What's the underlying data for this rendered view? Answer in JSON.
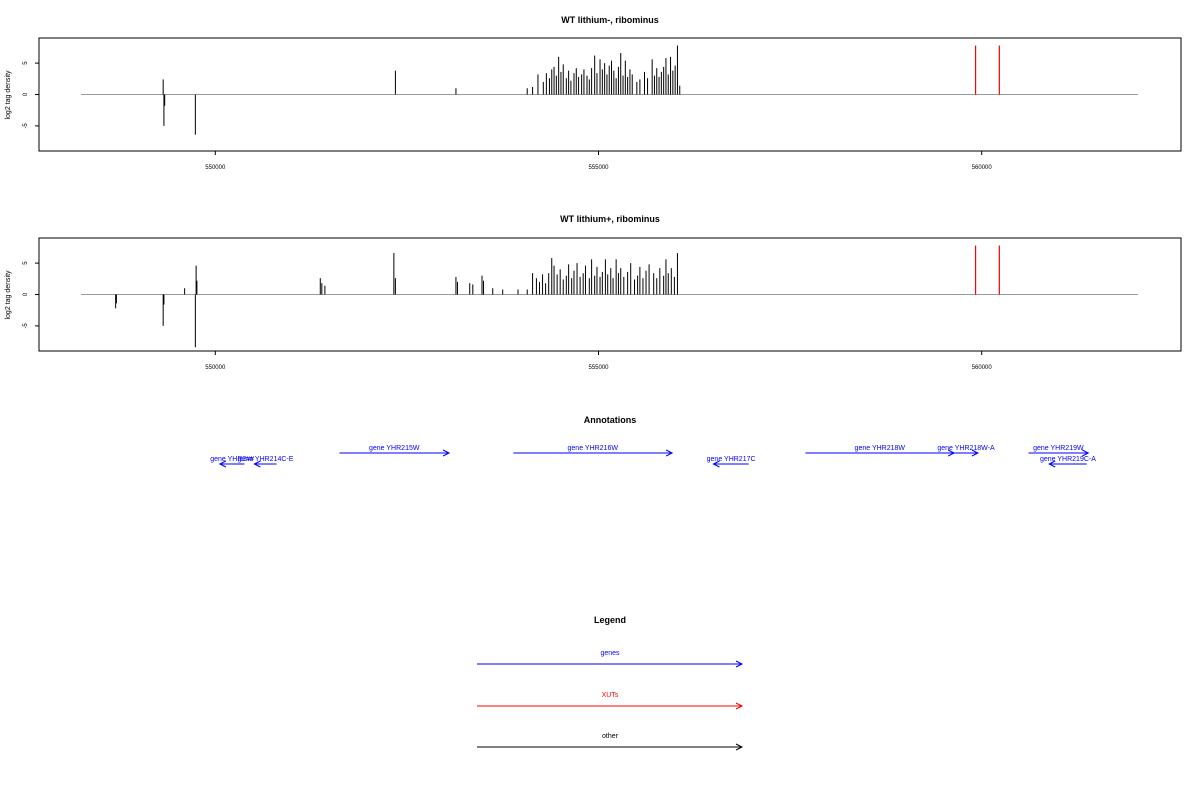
{
  "chart_data": [
    {
      "type": "bar",
      "title": "WT lithium-, ribominus",
      "xlabel": "",
      "ylabel": "log2 tag density",
      "xlim": [
        547700,
        562600
      ],
      "ylim": [
        -9,
        9
      ],
      "x_ticks": [
        550000,
        555000,
        560000
      ],
      "x_tick_labels": [
        "550000",
        "555000",
        "560000"
      ],
      "y_ticks": [
        -5,
        0,
        5
      ],
      "y_tick_labels": [
        "-5",
        "0",
        "5"
      ],
      "baseline": 0,
      "series": [
        {
          "color": "#000000",
          "points": [
            [
              549320,
              2.4
            ],
            [
              549330,
              -5.0
            ],
            [
              549340,
              -1.8
            ],
            [
              549740,
              -6.4
            ],
            [
              552350,
              3.8
            ],
            [
              553140,
              1.0
            ],
            [
              554070,
              1.0
            ],
            [
              554140,
              1.2
            ],
            [
              554210,
              3.2
            ],
            [
              554280,
              2.0
            ],
            [
              554320,
              3.4
            ],
            [
              554360,
              2.6
            ],
            [
              554390,
              4.0
            ],
            [
              554420,
              4.4
            ],
            [
              554450,
              3.0
            ],
            [
              554480,
              6.0
            ],
            [
              554510,
              3.6
            ],
            [
              554540,
              4.8
            ],
            [
              554580,
              2.6
            ],
            [
              554610,
              3.8
            ],
            [
              554640,
              2.2
            ],
            [
              554680,
              3.4
            ],
            [
              554710,
              4.2
            ],
            [
              554740,
              2.8
            ],
            [
              554780,
              3.2
            ],
            [
              554810,
              4.0
            ],
            [
              554850,
              3.0
            ],
            [
              554880,
              2.4
            ],
            [
              554910,
              4.2
            ],
            [
              554950,
              6.2
            ],
            [
              554980,
              3.4
            ],
            [
              555020,
              5.6
            ],
            [
              555050,
              4.0
            ],
            [
              555080,
              5.0
            ],
            [
              555110,
              3.2
            ],
            [
              555140,
              4.6
            ],
            [
              555170,
              5.4
            ],
            [
              555200,
              3.8
            ],
            [
              555230,
              2.6
            ],
            [
              555260,
              4.4
            ],
            [
              555290,
              6.6
            ],
            [
              555320,
              3.0
            ],
            [
              555350,
              5.4
            ],
            [
              555380,
              2.8
            ],
            [
              555410,
              4.0
            ],
            [
              555440,
              3.2
            ],
            [
              555500,
              2.0
            ],
            [
              555540,
              2.4
            ],
            [
              555600,
              3.6
            ],
            [
              555640,
              2.6
            ],
            [
              555700,
              5.6
            ],
            [
              555730,
              3.0
            ],
            [
              555760,
              4.2
            ],
            [
              555790,
              2.8
            ],
            [
              555820,
              3.6
            ],
            [
              555850,
              4.4
            ],
            [
              555880,
              5.8
            ],
            [
              555910,
              3.2
            ],
            [
              555940,
              6.0
            ],
            [
              555970,
              3.8
            ],
            [
              556000,
              4.6
            ],
            [
              556030,
              7.8
            ],
            [
              556060,
              1.4
            ]
          ]
        },
        {
          "color": "#ff0000",
          "points": [
            [
              559920,
              7.8
            ],
            [
              560230,
              7.8
            ]
          ]
        }
      ]
    },
    {
      "type": "bar",
      "title": "WT lithium+, ribominus",
      "xlabel": "",
      "ylabel": "log2 tag density",
      "xlim": [
        547700,
        562600
      ],
      "ylim": [
        -9,
        9
      ],
      "x_ticks": [
        550000,
        555000,
        560000
      ],
      "x_tick_labels": [
        "550000",
        "555000",
        "560000"
      ],
      "y_ticks": [
        -5,
        0,
        5
      ],
      "y_tick_labels": [
        "-5",
        "0",
        "5"
      ],
      "baseline": 0,
      "series": [
        {
          "color": "#000000",
          "points": [
            [
              548700,
              -2.2
            ],
            [
              548710,
              -1.4
            ],
            [
              549320,
              -5.0
            ],
            [
              549330,
              -1.6
            ],
            [
              549600,
              1.0
            ],
            [
              549740,
              -8.4
            ],
            [
              549750,
              4.6
            ],
            [
              549760,
              2.2
            ],
            [
              551370,
              2.6
            ],
            [
              551390,
              1.8
            ],
            [
              551430,
              1.4
            ],
            [
              552330,
              6.6
            ],
            [
              552350,
              2.6
            ],
            [
              553140,
              2.8
            ],
            [
              553160,
              2.0
            ],
            [
              553320,
              1.8
            ],
            [
              553360,
              1.6
            ],
            [
              553480,
              3.0
            ],
            [
              553500,
              2.2
            ],
            [
              553620,
              1.0
            ],
            [
              553750,
              0.8
            ],
            [
              553950,
              0.8
            ],
            [
              554070,
              0.8
            ],
            [
              554140,
              3.4
            ],
            [
              554190,
              2.6
            ],
            [
              554230,
              2.0
            ],
            [
              554270,
              3.2
            ],
            [
              554310,
              1.8
            ],
            [
              554350,
              3.4
            ],
            [
              554390,
              5.8
            ],
            [
              554420,
              4.6
            ],
            [
              554460,
              3.2
            ],
            [
              554500,
              4.0
            ],
            [
              554540,
              2.4
            ],
            [
              554580,
              3.0
            ],
            [
              554610,
              4.8
            ],
            [
              554650,
              2.6
            ],
            [
              554680,
              3.8
            ],
            [
              554720,
              5.0
            ],
            [
              554760,
              2.8
            ],
            [
              554800,
              3.4
            ],
            [
              554830,
              4.6
            ],
            [
              554880,
              2.6
            ],
            [
              554910,
              5.6
            ],
            [
              554950,
              3.0
            ],
            [
              554980,
              4.4
            ],
            [
              555020,
              2.8
            ],
            [
              555050,
              3.6
            ],
            [
              555090,
              5.6
            ],
            [
              555120,
              3.2
            ],
            [
              555160,
              4.2
            ],
            [
              555190,
              2.6
            ],
            [
              555230,
              5.6
            ],
            [
              555260,
              3.4
            ],
            [
              555290,
              4.2
            ],
            [
              555330,
              2.8
            ],
            [
              555380,
              3.6
            ],
            [
              555420,
              5.0
            ],
            [
              555470,
              2.4
            ],
            [
              555510,
              3.0
            ],
            [
              555540,
              4.4
            ],
            [
              555580,
              2.6
            ],
            [
              555620,
              3.8
            ],
            [
              555660,
              4.8
            ],
            [
              555720,
              3.4
            ],
            [
              555760,
              2.6
            ],
            [
              555800,
              4.2
            ],
            [
              555850,
              3.0
            ],
            [
              555880,
              5.6
            ],
            [
              555910,
              3.4
            ],
            [
              555950,
              4.2
            ],
            [
              555990,
              2.8
            ],
            [
              556030,
              6.6
            ]
          ]
        },
        {
          "color": "#ff0000",
          "points": [
            [
              559920,
              7.8
            ],
            [
              560230,
              7.8
            ]
          ]
        }
      ]
    }
  ],
  "annotations": {
    "title": "Annotations",
    "genes": [
      {
        "label": "gene YHR2##",
        "strand": "-",
        "start": 550060,
        "end": 550380,
        "row": 1
      },
      {
        "label": "gene YHR214C-E",
        "strand": "-",
        "start": 550510,
        "end": 550800,
        "row": 1
      },
      {
        "label": "gene YHR215W",
        "strand": "+",
        "start": 551620,
        "end": 553050,
        "row": 0
      },
      {
        "label": "gene YHR216W",
        "strand": "+",
        "start": 553890,
        "end": 555960,
        "row": 0
      },
      {
        "label": "gene YHR217C",
        "strand": "-",
        "start": 556500,
        "end": 556960,
        "row": 1
      },
      {
        "label": "gene YHR218W",
        "strand": "+",
        "start": 557700,
        "end": 559640,
        "row": 0
      },
      {
        "label": "gene YHR218W-A",
        "strand": "+",
        "start": 559640,
        "end": 559950,
        "row": 0
      },
      {
        "label": "gene YHR219W",
        "strand": "+",
        "start": 560610,
        "end": 561390,
        "row": 0
      },
      {
        "label": "gene YHR219C-A",
        "strand": "-",
        "start": 560880,
        "end": 561370,
        "row": 1
      }
    ]
  },
  "legend": {
    "title": "Legend",
    "items": [
      {
        "label": "genes",
        "color": "#0000ff"
      },
      {
        "label": "XUTs",
        "color": "#ff0000"
      },
      {
        "label": "other",
        "color": "#000000"
      }
    ]
  }
}
